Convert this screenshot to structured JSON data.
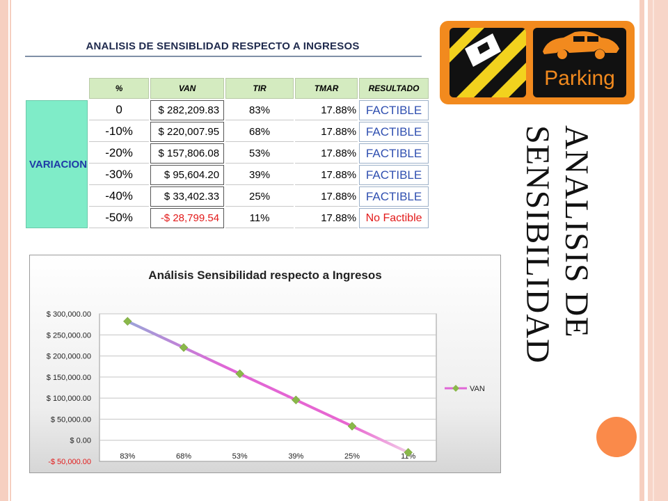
{
  "table": {
    "title": "ANALISIS DE SENSIBLIDAD RESPECTO A INGRESOS",
    "headers": [
      "%",
      "VAN",
      "TIR",
      "TMAR",
      "RESULTADO"
    ],
    "row_label": "VARIACION",
    "rows": [
      {
        "pct": "0",
        "van": "$ 282,209.83",
        "tir": "83%",
        "tmar": "17.88%",
        "res": "FACTIBLE"
      },
      {
        "pct": "-10%",
        "van": "$ 220,007.95",
        "tir": "68%",
        "tmar": "17.88%",
        "res": "FACTIBLE"
      },
      {
        "pct": "-20%",
        "van": "$ 157,806.08",
        "tir": "53%",
        "tmar": "17.88%",
        "res": "FACTIBLE"
      },
      {
        "pct": "-30%",
        "van": "$ 95,604.20",
        "tir": "39%",
        "tmar": "17.88%",
        "res": "FACTIBLE"
      },
      {
        "pct": "-40%",
        "van": "$ 33,402.33",
        "tir": "25%",
        "tmar": "17.88%",
        "res": "FACTIBLE"
      },
      {
        "pct": "-50%",
        "van": "-$ 28,799.54",
        "tir": "11%",
        "tmar": "17.88%",
        "res": "No Factible"
      }
    ]
  },
  "logo": {
    "text": "Parking",
    "color": "#f28a1e"
  },
  "side_title": {
    "line1": "ANALISIS DE",
    "line2": "SENSIBILIDAD"
  },
  "colors": {
    "accent_circle": "#fa8a4a",
    "variacion_bg": "#7fecc8",
    "header_bg": "#d4ebc0",
    "factible": "#2f4fb0",
    "no_factible": "#e21a1a",
    "series": "#e066d6",
    "marker": "#8ab84a"
  },
  "chart_data": {
    "type": "line",
    "title": "Análisis Sensibilidad respecto a Ingresos",
    "categories": [
      "83%",
      "68%",
      "53%",
      "39%",
      "25%",
      "11%"
    ],
    "series": [
      {
        "name": "VAN",
        "values": [
          282209.83,
          220007.95,
          157806.08,
          95604.2,
          33402.33,
          -28799.54
        ]
      }
    ],
    "ylim": [
      -50000,
      300000
    ],
    "ytick_values": [
      300000,
      250000,
      200000,
      150000,
      100000,
      50000,
      0,
      -50000
    ],
    "ytick_labels": [
      "$ 300,000.00",
      "$ 250,000.00",
      "$ 200,000.00",
      "$ 150,000.00",
      "$ 100,000.00",
      "$ 50,000.00",
      "$ 0.00",
      "-$ 50,000.00"
    ],
    "grid": true,
    "legend": "right"
  }
}
